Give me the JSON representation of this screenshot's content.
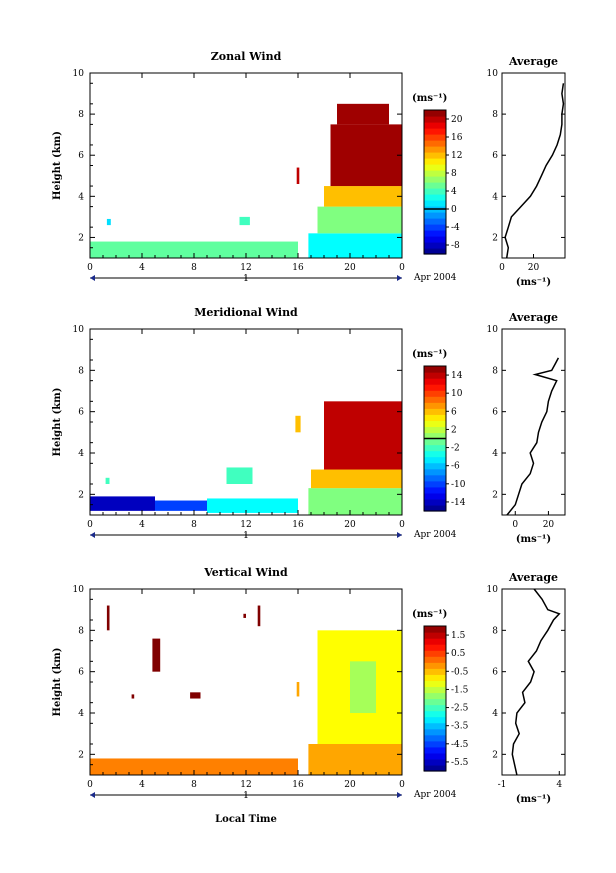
{
  "figure": {
    "date_label": "Apr 2004",
    "day_label": "1",
    "xlabel": "Local Time",
    "ylabel": "Height (km)",
    "avg_title": "Average",
    "unit_label": "(ms⁻¹)"
  },
  "chart_data": [
    {
      "type": "heatmap",
      "title": "Zonal Wind",
      "xlabel": "Local Time",
      "ylabel": "Height (km)",
      "xlim": [
        0,
        24
      ],
      "ylim": [
        1,
        10
      ],
      "x_ticks": [
        "0",
        "4",
        "8",
        "12",
        "16",
        "20",
        "0"
      ],
      "y_ticks": [
        "2",
        "4",
        "6",
        "8",
        "10"
      ],
      "colorbar": {
        "unit": "(ms⁻¹)",
        "range": [
          -10,
          22
        ],
        "tick_values": [
          -8,
          -4,
          0,
          4,
          8,
          12,
          16,
          20
        ],
        "tick_labels": [
          "-8",
          "-4",
          "0",
          "4",
          "8",
          "12",
          "16",
          "20"
        ],
        "zero_line": 0
      },
      "regions": [
        {
          "x": [
            0,
            16
          ],
          "y": [
            1.0,
            1.8
          ],
          "value": 5
        },
        {
          "x": [
            16.8,
            24
          ],
          "y": [
            1.0,
            2.2
          ],
          "value": 2
        },
        {
          "x": [
            17.5,
            24
          ],
          "y": [
            2.2,
            3.5
          ],
          "value": 6
        },
        {
          "x": [
            18,
            24
          ],
          "y": [
            3.5,
            4.5
          ],
          "value": 12
        },
        {
          "x": [
            18.5,
            24
          ],
          "y": [
            4.5,
            7.5
          ],
          "value": 21
        },
        {
          "x": [
            19,
            23
          ],
          "y": [
            7.5,
            8.5
          ],
          "value": 21
        },
        {
          "x": [
            15.9,
            16.1
          ],
          "y": [
            4.6,
            5.4
          ],
          "value": 20
        },
        {
          "x": [
            1.3,
            1.6
          ],
          "y": [
            2.6,
            2.9
          ],
          "value": 1
        },
        {
          "x": [
            11.5,
            12.3
          ],
          "y": [
            2.6,
            3.0
          ],
          "value": 4
        }
      ],
      "average": {
        "xlim": [
          0,
          40
        ],
        "x_ticks": [
          0,
          20
        ],
        "x_tick_labels": [
          "0",
          "20"
        ],
        "xlabel": "(ms⁻¹)",
        "y_ticks": [
          "2",
          "4",
          "6",
          "8",
          "10"
        ],
        "height": [
          1.0,
          1.5,
          2.0,
          2.5,
          3.0,
          3.5,
          4.0,
          4.5,
          5.0,
          5.5,
          6.0,
          6.5,
          7.0,
          7.5,
          8.0,
          8.5,
          9.0,
          9.5
        ],
        "value": [
          3,
          4,
          2,
          4,
          6,
          12,
          18,
          22,
          25,
          28,
          32,
          35,
          37,
          38,
          38,
          39,
          38,
          39
        ]
      }
    },
    {
      "type": "heatmap",
      "title": "Meridional Wind",
      "xlabel": "Local Time",
      "ylabel": "Height (km)",
      "xlim": [
        0,
        24
      ],
      "ylim": [
        1,
        10
      ],
      "x_ticks": [
        "0",
        "4",
        "8",
        "12",
        "16",
        "20",
        "0"
      ],
      "y_ticks": [
        "2",
        "4",
        "6",
        "8",
        "10"
      ],
      "colorbar": {
        "unit": "(ms⁻¹)",
        "range": [
          -16,
          16
        ],
        "tick_values": [
          -14,
          -10,
          -6,
          -2,
          2,
          6,
          10,
          14
        ],
        "tick_labels": [
          "-14",
          "-10",
          "-6",
          "-2",
          "2",
          "6",
          "10",
          "14"
        ],
        "zero_line": 0
      },
      "regions": [
        {
          "x": [
            0,
            5
          ],
          "y": [
            1.2,
            1.9
          ],
          "value": -14
        },
        {
          "x": [
            5,
            9
          ],
          "y": [
            1.2,
            1.7
          ],
          "value": -10
        },
        {
          "x": [
            9,
            16
          ],
          "y": [
            1.1,
            1.8
          ],
          "value": -4
        },
        {
          "x": [
            16.8,
            24
          ],
          "y": [
            1.0,
            2.3
          ],
          "value": 0
        },
        {
          "x": [
            17,
            24
          ],
          "y": [
            2.3,
            3.2
          ],
          "value": 6
        },
        {
          "x": [
            18,
            24
          ],
          "y": [
            3.2,
            6.5
          ],
          "value": 14
        },
        {
          "x": [
            15.8,
            16.2
          ],
          "y": [
            5.0,
            5.8
          ],
          "value": 6
        },
        {
          "x": [
            10.5,
            12.5
          ],
          "y": [
            2.5,
            3.3
          ],
          "value": -2
        },
        {
          "x": [
            1.2,
            1.5
          ],
          "y": [
            2.5,
            2.8
          ],
          "value": -2
        }
      ],
      "average": {
        "xlim": [
          -8,
          30
        ],
        "x_ticks": [
          0,
          20
        ],
        "x_tick_labels": [
          "0",
          "20"
        ],
        "xlabel": "(ms⁻¹)",
        "y_ticks": [
          "2",
          "4",
          "6",
          "8",
          "10"
        ],
        "height": [
          1.0,
          1.5,
          2.0,
          2.5,
          3.0,
          3.5,
          4.0,
          4.5,
          5.0,
          5.5,
          6.0,
          6.5,
          7.0,
          7.5,
          7.8,
          8.0,
          8.3,
          8.6
        ],
        "value": [
          -5,
          0,
          2,
          4,
          9,
          11,
          9,
          13,
          14,
          16,
          19,
          20,
          22,
          25,
          12,
          22,
          24,
          26
        ]
      }
    },
    {
      "type": "heatmap",
      "title": "Vertical Wind",
      "xlabel": "Local Time",
      "ylabel": "Height (km)",
      "xlim": [
        0,
        24
      ],
      "ylim": [
        1,
        10
      ],
      "x_ticks": [
        "0",
        "4",
        "8",
        "12",
        "16",
        "20",
        "0"
      ],
      "y_ticks": [
        "2",
        "4",
        "6",
        "8",
        "10"
      ],
      "colorbar": {
        "unit": "(ms⁻¹)",
        "range": [
          -6.0,
          2.0
        ],
        "tick_values": [
          -5.5,
          -4.5,
          -3.5,
          -2.5,
          -1.5,
          -0.5,
          0.5,
          1.5
        ],
        "tick_labels": [
          "-5.5",
          "-4.5",
          "-3.5",
          "-2.5",
          "-1.5",
          "-0.5",
          "0.5",
          "1.5"
        ],
        "zero_line": null
      },
      "regions": [
        {
          "x": [
            0,
            16
          ],
          "y": [
            1.0,
            1.8
          ],
          "value": 0.0
        },
        {
          "x": [
            16.8,
            24
          ],
          "y": [
            1.0,
            2.5
          ],
          "value": -0.3
        },
        {
          "x": [
            17.5,
            24
          ],
          "y": [
            2.5,
            8.0
          ],
          "value": -1.0
        },
        {
          "x": [
            20,
            22
          ],
          "y": [
            4.0,
            6.5
          ],
          "value": -1.7
        },
        {
          "x": [
            15.9,
            16.1
          ],
          "y": [
            4.8,
            5.5
          ],
          "value": -0.3
        },
        {
          "x": [
            1.3,
            1.5
          ],
          "y": [
            8.0,
            9.2
          ],
          "value": 2.0
        },
        {
          "x": [
            4.8,
            5.4
          ],
          "y": [
            6.0,
            7.6
          ],
          "value": 2.0
        },
        {
          "x": [
            11.8,
            12.0
          ],
          "y": [
            8.6,
            8.8
          ],
          "value": 2.0
        },
        {
          "x": [
            12.9,
            13.1
          ],
          "y": [
            8.2,
            9.2
          ],
          "value": 2.0
        },
        {
          "x": [
            7.7,
            8.5
          ],
          "y": [
            4.7,
            5.0
          ],
          "value": 2.0
        },
        {
          "x": [
            3.2,
            3.4
          ],
          "y": [
            4.7,
            4.9
          ],
          "value": 2.0
        }
      ],
      "average": {
        "xlim": [
          -1,
          4.5
        ],
        "x_ticks": [
          -1,
          4
        ],
        "x_tick_labels": [
          "-1",
          "4"
        ],
        "xlabel": "(ms⁻¹)",
        "y_ticks": [
          "2",
          "4",
          "6",
          "8",
          "10"
        ],
        "height": [
          1.0,
          1.5,
          2.0,
          2.5,
          3.0,
          3.5,
          4.0,
          4.5,
          5.0,
          5.5,
          6.0,
          6.5,
          7.0,
          7.5,
          8.0,
          8.5,
          8.8,
          9.0,
          9.5,
          10.0
        ],
        "value": [
          0.3,
          0.1,
          -0.1,
          0.0,
          0.5,
          0.2,
          0.3,
          1.0,
          0.8,
          1.5,
          1.8,
          1.3,
          2.0,
          2.4,
          3.0,
          3.5,
          4.0,
          3.0,
          2.5,
          1.8
        ]
      }
    }
  ]
}
